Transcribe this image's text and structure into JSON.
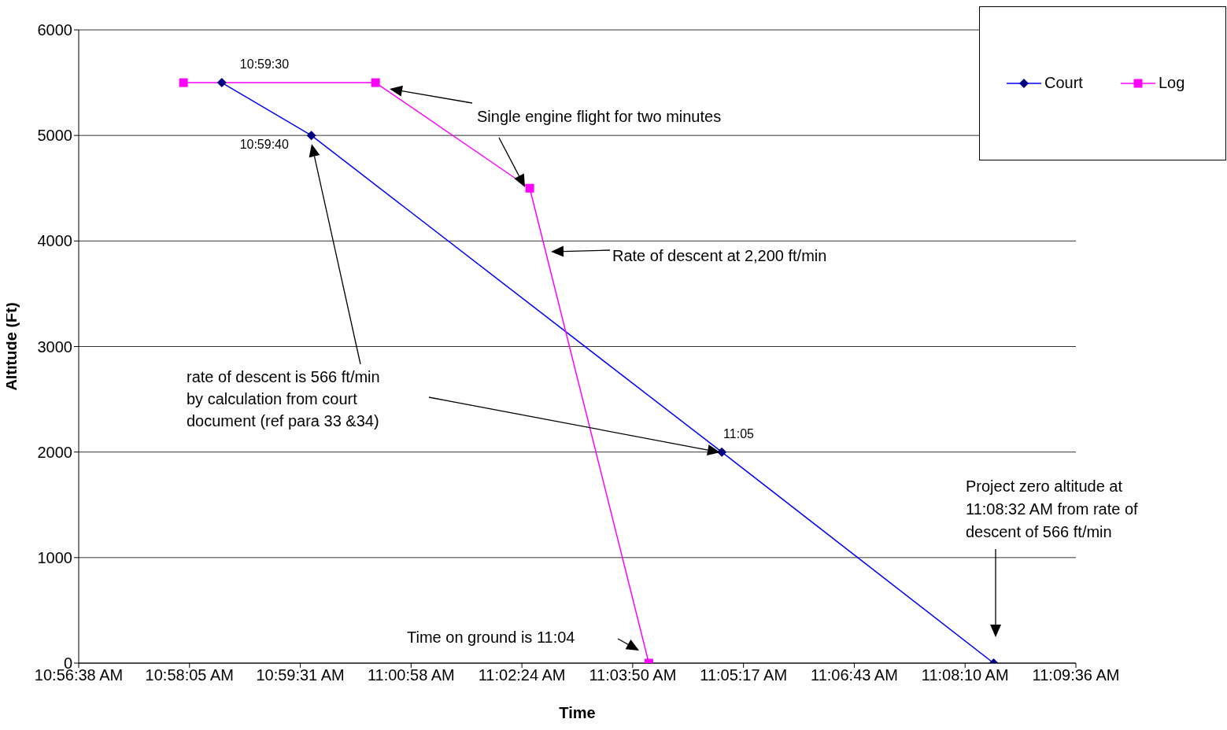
{
  "chart_data": {
    "type": "line",
    "xlabel": "Time",
    "ylabel": "Altitude (Ft)",
    "series": [
      {
        "name": "Court",
        "color": "#0000ff",
        "marker": "diamond",
        "x": [
          10.975,
          10.9944,
          11.0833,
          11.1422
        ],
        "values": [
          5500,
          5000,
          2000,
          0
        ]
      },
      {
        "name": "Log",
        "color": "#ff00ff",
        "marker": "square",
        "x": [
          10.9667,
          11.0083,
          11.0417,
          11.0675
        ],
        "values": [
          5500,
          5500,
          4500,
          0
        ]
      }
    ],
    "xlim": [
      10.944,
      11.16
    ],
    "xticks": [
      {
        "value": 10.944,
        "label": "10:56:38 AM"
      },
      {
        "value": 10.968,
        "label": "10:58:05 AM"
      },
      {
        "value": 10.992,
        "label": "10:59:31 AM"
      },
      {
        "value": 11.016,
        "label": "11:00:58 AM"
      },
      {
        "value": 11.04,
        "label": "11:02:24 AM"
      },
      {
        "value": 11.064,
        "label": "11:03:50 AM"
      },
      {
        "value": 11.088,
        "label": "11:05:17 AM"
      },
      {
        "value": 11.112,
        "label": "11:06:43 AM"
      },
      {
        "value": 11.136,
        "label": "11:08:10 AM"
      },
      {
        "value": 11.16,
        "label": "11:09:36 AM"
      }
    ],
    "ylim": [
      0,
      6000
    ],
    "yticks": [
      0,
      1000,
      2000,
      3000,
      4000,
      5000,
      6000
    ],
    "grid": "y",
    "legend": "top right",
    "line_style": "solid",
    "annotations": [
      {
        "text": "10:59:30",
        "x": 10.975,
        "y": 5500
      },
      {
        "text": "10:59:40",
        "x": 10.9944,
        "y": 5000
      },
      {
        "text": "11:05",
        "x": 11.0833,
        "y": 2000
      },
      "Single engine flight for two minutes",
      "Rate of descent at 2,200 ft/min",
      "rate of descent is 566 ft/min\nby calculation from court\ndocument (ref para 33 &34)",
      "Time on ground is 11:04",
      "Project zero altitude at\n11:08:32 AM from rate of\ndescent of 566 ft/min"
    ]
  }
}
